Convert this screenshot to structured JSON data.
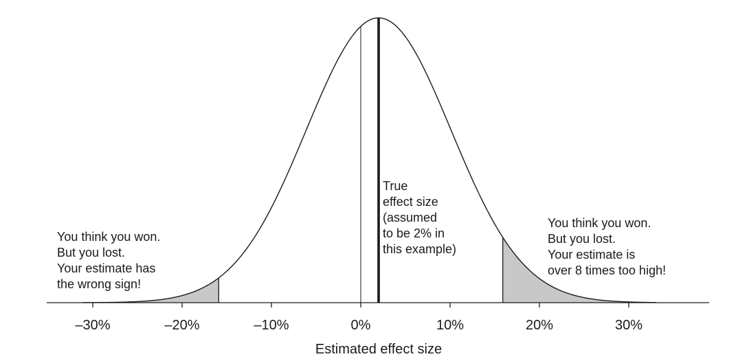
{
  "chart_data": {
    "type": "area",
    "xlabel": "Estimated effect size",
    "ylabel": "",
    "xlim": [
      -35,
      39
    ],
    "ticks": [
      {
        "value": -30,
        "label": "–30%"
      },
      {
        "value": -20,
        "label": "–20%"
      },
      {
        "value": -10,
        "label": "–10%"
      },
      {
        "value": 0,
        "label": "0%"
      },
      {
        "value": 10,
        "label": "10%"
      },
      {
        "value": 20,
        "label": "20%"
      },
      {
        "value": 30,
        "label": "30%"
      }
    ],
    "distribution": {
      "kind": "normal",
      "mean": 2,
      "sd": 8.1
    },
    "shaded_regions": [
      {
        "name": "left-tail",
        "from": -35,
        "to": -15.9,
        "color": "#c8c8c8"
      },
      {
        "name": "right-tail",
        "from": 15.9,
        "to": 39,
        "color": "#c8c8c8"
      }
    ],
    "reference_lines": [
      {
        "name": "zero-line",
        "x": 0
      },
      {
        "name": "true-effect-line",
        "x": 2
      }
    ],
    "annotations": {
      "left": [
        "You think you won.",
        "But you lost.",
        "Your estimate has",
        "the wrong sign!"
      ],
      "center": [
        "True",
        "effect size",
        "(assumed",
        "to be 2% in",
        "this example)"
      ],
      "right": [
        "You think you won.",
        "But you lost.",
        "Your estimate is",
        "over 8 times too high!"
      ]
    },
    "grid": false
  }
}
